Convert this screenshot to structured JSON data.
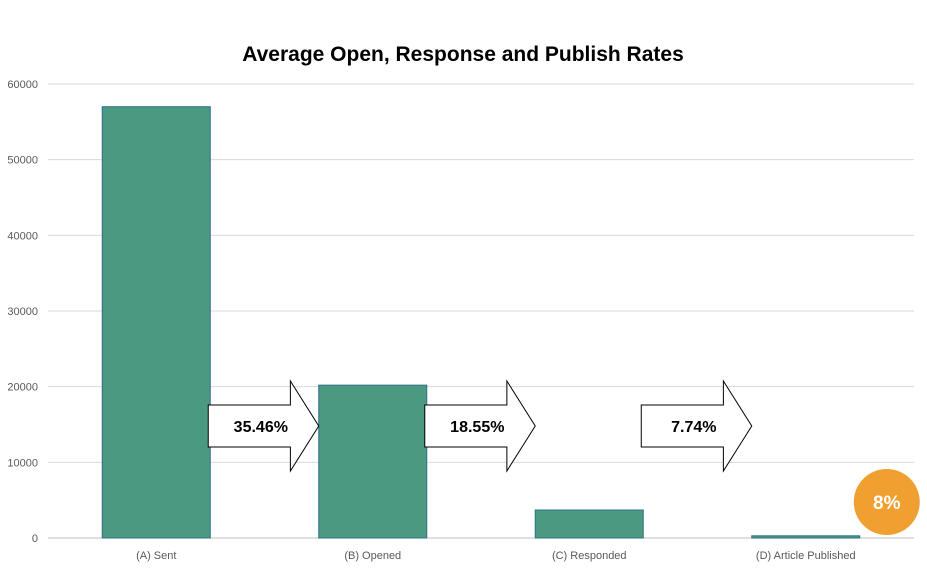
{
  "chart_data": {
    "type": "bar",
    "title": "Average Open, Response and Publish Rates",
    "xlabel": "",
    "ylabel": "",
    "categories": [
      "(A) Sent",
      "(B) Opened",
      "(C) Responded",
      "(D) Article Published"
    ],
    "values": [
      57000,
      20200,
      3700,
      290
    ],
    "ylim": [
      0,
      60000
    ],
    "yticks": [
      0,
      10000,
      20000,
      30000,
      40000,
      50000,
      60000
    ],
    "grid": true,
    "legend": "none",
    "annotations": {
      "arrows": [
        {
          "label": "35.46%",
          "from": 0,
          "to": 1
        },
        {
          "label": "18.55%",
          "from": 1,
          "to": 2
        },
        {
          "label": "7.74%",
          "from": 2,
          "to": 3
        }
      ],
      "badge": {
        "label": "8%",
        "category": 3
      }
    }
  },
  "colors": {
    "bar_fill": "#4a9980",
    "bar_stroke": "#2f6f8a",
    "grid": "#d9d9d9",
    "axis": "#bfbfbf",
    "badge": "#f0a030",
    "arrow_fill": "#ffffff",
    "arrow_stroke": "#000000"
  }
}
